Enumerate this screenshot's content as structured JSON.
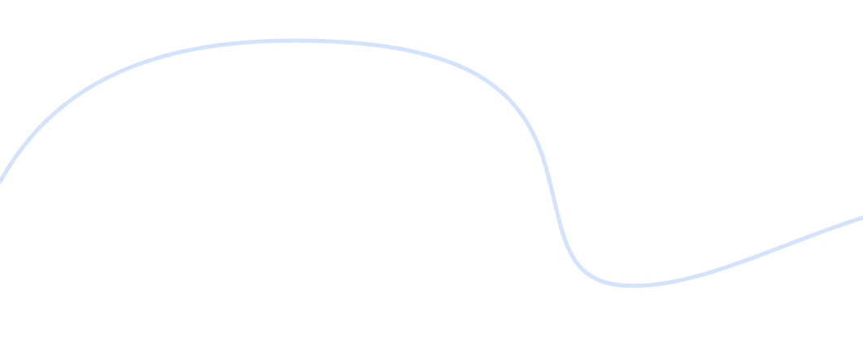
{
  "background_color": "#ffffff",
  "curve": {
    "color": "#d3e3fd"
  }
}
